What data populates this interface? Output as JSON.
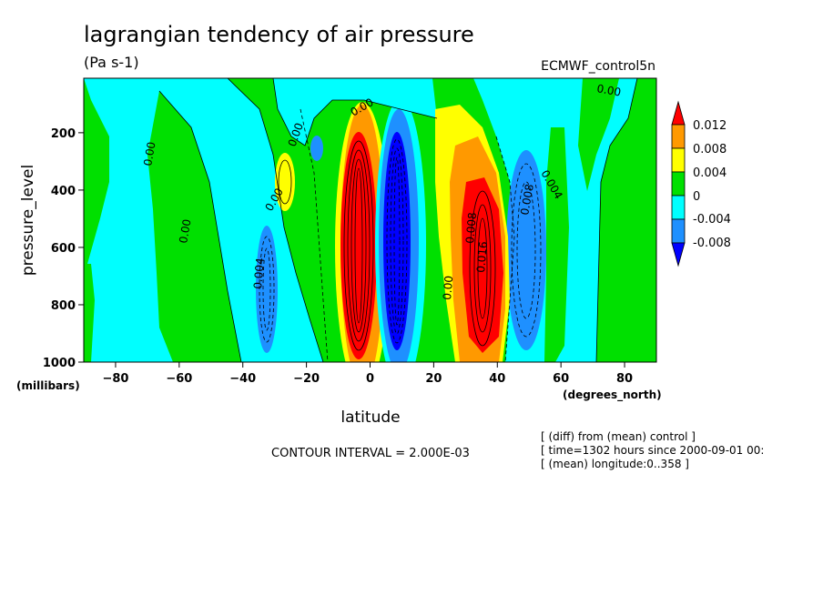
{
  "chart_data": {
    "type": "contour",
    "title": "lagrangian tendency of air pressure",
    "units": "(Pa s-1)",
    "dataset": "ECMWF_control5n",
    "xlabel": "latitude",
    "x_units": "(degrees_north)",
    "ylabel": "pressure_level",
    "y_units": "(millibars)",
    "xlim": [
      -90,
      90
    ],
    "ylim": [
      1000,
      10
    ],
    "x_ticks": [
      -80,
      -60,
      -40,
      -20,
      0,
      20,
      40,
      60,
      80
    ],
    "y_ticks": [
      200,
      400,
      600,
      800,
      1000
    ],
    "contour_interval_text": "CONTOUR INTERVAL = 2.000E-03",
    "colorbar": {
      "labels": [
        "0.012",
        "0.008",
        "0.004",
        "0",
        "-0.004",
        "-0.008"
      ],
      "colors": [
        "#ff0000",
        "#ff9900",
        "#ffff00",
        "#00e000",
        "#00ffff",
        "#1e90ff",
        "#0000ff"
      ]
    },
    "contour_labels": [
      "0.00",
      "0.00",
      "0.00",
      "0.00",
      "0.00",
      "0.004",
      "0.00",
      "0.008",
      "0.016",
      "0.008",
      "0.004",
      "0.00"
    ],
    "info_lines": [
      "[ (diff) from (mean) control ]",
      "[ time=1302 hours since 2000-09-01 00:",
      "[ (mean) longitude:0..358 ]"
    ],
    "features": [
      {
        "name": "strong-positive-core",
        "lat": [
          -8,
          2
        ],
        "p": [
          180,
          990
        ],
        "level": 0.012
      },
      {
        "name": "strong-negative-core",
        "lat": [
          3,
          14
        ],
        "p": [
          150,
          990
        ],
        "level": -0.012
      },
      {
        "name": "positive-cell-north",
        "lat": [
          27,
          42
        ],
        "p": [
          350,
          960
        ],
        "level": 0.012
      },
      {
        "name": "negative-cell-north",
        "lat": [
          43,
          58
        ],
        "p": [
          300,
          960
        ],
        "level": -0.008
      },
      {
        "name": "negative-cell-south",
        "lat": [
          -38,
          -28
        ],
        "p": [
          500,
          950
        ],
        "level": -0.008
      },
      {
        "name": "positive-cell-south",
        "lat": [
          -30,
          -22
        ],
        "p": [
          250,
          450
        ],
        "level": 0.004
      }
    ]
  }
}
